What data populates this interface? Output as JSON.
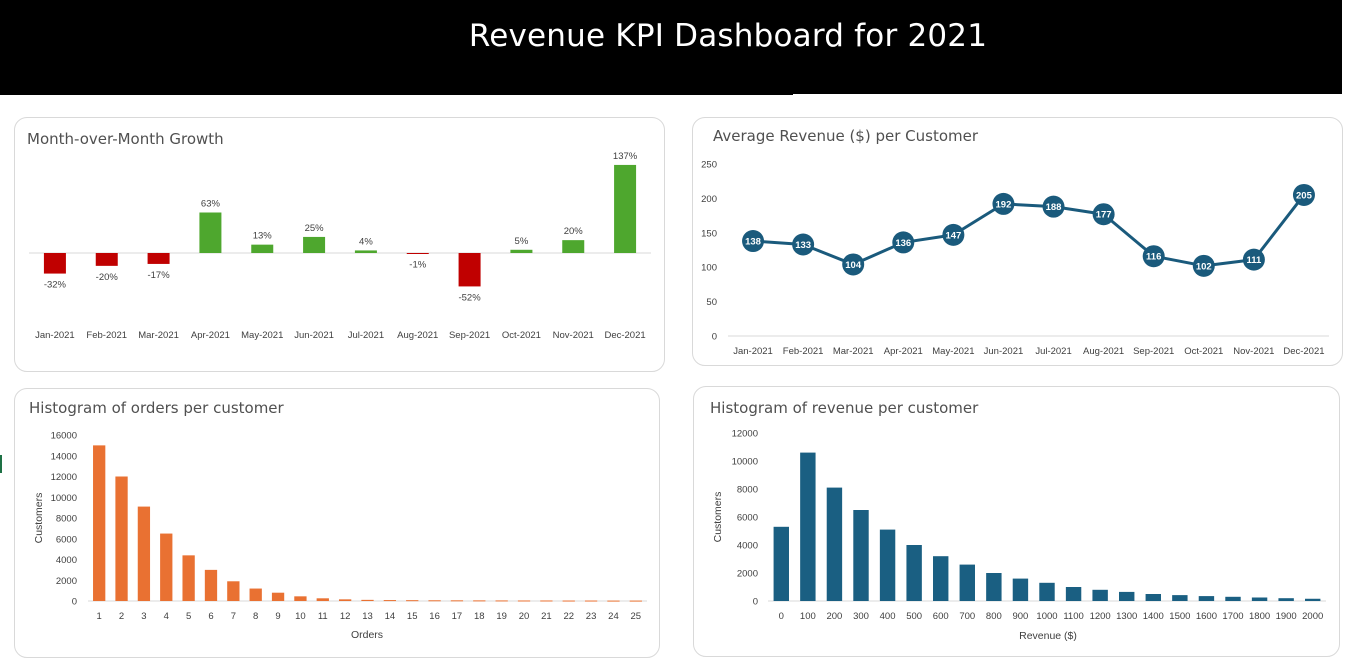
{
  "dashboard": {
    "title": "Revenue KPI Dashboard for 2021"
  },
  "colors": {
    "positive": "#4ea72e",
    "negative": "#c00000",
    "line": "#1a5a7c",
    "orders_bar": "#e97132",
    "revenue_bar": "#1a5f82"
  },
  "chart_data": [
    {
      "id": "mom_growth",
      "type": "bar",
      "title": "Month-over-Month Growth",
      "categories": [
        "Jan-2021",
        "Feb-2021",
        "Mar-2021",
        "Apr-2021",
        "May-2021",
        "Jun-2021",
        "Jul-2021",
        "Aug-2021",
        "Sep-2021",
        "Oct-2021",
        "Nov-2021",
        "Dec-2021"
      ],
      "values": [
        -32,
        -20,
        -17,
        63,
        13,
        25,
        4,
        -1,
        -52,
        5,
        20,
        137
      ],
      "value_labels": [
        "-32%",
        "-20%",
        "-17%",
        "63%",
        "13%",
        "25%",
        "4%",
        "-1%",
        "-52%",
        "5%",
        "20%",
        "137%"
      ],
      "ylim": [
        -60,
        140
      ],
      "grid": false,
      "legend": "none"
    },
    {
      "id": "avg_revenue",
      "type": "line",
      "title": "Average Revenue ($) per Customer",
      "categories": [
        "Jan-2021",
        "Feb-2021",
        "Mar-2021",
        "Apr-2021",
        "May-2021",
        "Jun-2021",
        "Jul-2021",
        "Aug-2021",
        "Sep-2021",
        "Oct-2021",
        "Nov-2021",
        "Dec-2021"
      ],
      "values": [
        138,
        133,
        104,
        136,
        147,
        192,
        188,
        177,
        116,
        102,
        111,
        205
      ],
      "ylim": [
        0,
        250
      ],
      "yticks": [
        "0",
        "50",
        "100",
        "150",
        "200",
        "250"
      ],
      "grid": false,
      "legend": "none"
    },
    {
      "id": "orders_histogram",
      "type": "bar",
      "title": "Histogram of orders per customer",
      "xlabel": "Orders",
      "ylabel": "Customers",
      "categories": [
        "1",
        "2",
        "3",
        "4",
        "5",
        "6",
        "7",
        "8",
        "9",
        "10",
        "11",
        "12",
        "13",
        "14",
        "15",
        "16",
        "17",
        "18",
        "19",
        "20",
        "21",
        "22",
        "23",
        "24",
        "25"
      ],
      "values": [
        15000,
        12000,
        9100,
        6500,
        4400,
        3000,
        1900,
        1200,
        800,
        450,
        260,
        160,
        110,
        90,
        80,
        70,
        65,
        60,
        55,
        50,
        50,
        45,
        45,
        40,
        40
      ],
      "ylim": [
        0,
        16000
      ],
      "yticks": [
        "0",
        "2000",
        "4000",
        "6000",
        "8000",
        "10000",
        "12000",
        "14000",
        "16000"
      ],
      "grid": false,
      "legend": "none"
    },
    {
      "id": "revenue_histogram",
      "type": "bar",
      "title": "Histogram of revenue per customer",
      "xlabel": "Revenue ($)",
      "ylabel": "Customers",
      "categories": [
        "0",
        "100",
        "200",
        "300",
        "400",
        "500",
        "600",
        "700",
        "800",
        "900",
        "1000",
        "1100",
        "1200",
        "1300",
        "1400",
        "1500",
        "1600",
        "1700",
        "1800",
        "1900",
        "2000"
      ],
      "values": [
        5300,
        10600,
        8100,
        6500,
        5100,
        4000,
        3200,
        2600,
        2000,
        1600,
        1300,
        1000,
        800,
        650,
        500,
        420,
        350,
        300,
        250,
        200,
        160
      ],
      "ylim": [
        0,
        12000
      ],
      "yticks": [
        "0",
        "2000",
        "4000",
        "6000",
        "8000",
        "10000",
        "12000"
      ],
      "grid": false,
      "legend": "none"
    }
  ]
}
